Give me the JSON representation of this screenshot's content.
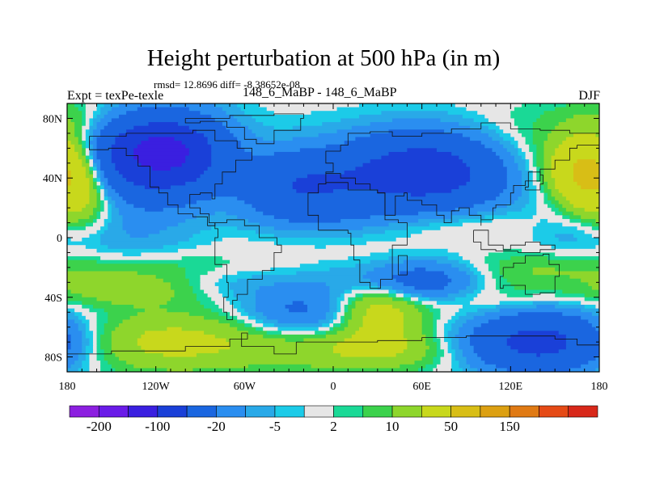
{
  "chart_data": {
    "type": "heatmap",
    "title": "Height perturbation at 500 hPa (in m)",
    "stats": "rmsd= 12.8696 diff= -8.38652e-08",
    "subtitle_left": "Expt = texPe-texle",
    "subtitle_center": "148_6_MaBP - 148_6_MaBP",
    "subtitle_right": "DJF",
    "x_range": [
      -180,
      180
    ],
    "y_range": [
      -90,
      90
    ],
    "x_ticks": [
      {
        "value": -180,
        "label": "180"
      },
      {
        "value": -120,
        "label": "120W"
      },
      {
        "value": -60,
        "label": "60W"
      },
      {
        "value": 0,
        "label": "0"
      },
      {
        "value": 60,
        "label": "60E"
      },
      {
        "value": 120,
        "label": "120E"
      },
      {
        "value": 180,
        "label": "180"
      }
    ],
    "y_ticks": [
      {
        "value": 80,
        "label": "80N"
      },
      {
        "value": 40,
        "label": "40N"
      },
      {
        "value": 0,
        "label": "0"
      },
      {
        "value": -40,
        "label": "40S"
      },
      {
        "value": -80,
        "label": "80S"
      }
    ],
    "colorbar": {
      "colors": [
        "#8c1fe0",
        "#6a1be8",
        "#3a1fe0",
        "#1a40d8",
        "#1a66e0",
        "#2a8ef0",
        "#29a9e8",
        "#1ccbe8",
        "#e6e6e6",
        "#1ad996",
        "#3cd24c",
        "#8ed62c",
        "#c8d81c",
        "#d8be16",
        "#dca012",
        "#e07a14",
        "#e54a16",
        "#d8281a"
      ],
      "labels": [
        {
          "index": 1,
          "label": "-200"
        },
        {
          "index": 3,
          "label": "-100"
        },
        {
          "index": 5,
          "label": "-20"
        },
        {
          "index": 7,
          "label": "-5"
        },
        {
          "index": 9,
          "label": "2"
        },
        {
          "index": 11,
          "label": "10"
        },
        {
          "index": 13,
          "label": "50"
        },
        {
          "index": 15,
          "label": "150"
        }
      ]
    },
    "field_blobs": [
      {
        "lon": -115,
        "lat": 55,
        "rx": 42,
        "ry": 20,
        "amp": -95
      },
      {
        "lon": -115,
        "lat": 58,
        "rx": 14,
        "ry": 9,
        "amp": -55
      },
      {
        "lon": -175,
        "lat": 40,
        "rx": 18,
        "ry": 25,
        "amp": 45
      },
      {
        "lon": -68,
        "lat": 50,
        "rx": 26,
        "ry": 22,
        "amp": 30
      },
      {
        "lon": -160,
        "lat": 80,
        "rx": 40,
        "ry": 10,
        "amp": 8
      },
      {
        "lon": -25,
        "lat": 35,
        "rx": 32,
        "ry": 15,
        "amp": -45
      },
      {
        "lon": 0,
        "lat": 15,
        "rx": 45,
        "ry": 10,
        "amp": -10
      },
      {
        "lon": 65,
        "lat": 45,
        "rx": 40,
        "ry": 18,
        "amp": -75
      },
      {
        "lon": 130,
        "lat": 55,
        "rx": 45,
        "ry": 18,
        "amp": 15
      },
      {
        "lon": 168,
        "lat": 45,
        "rx": 16,
        "ry": 15,
        "amp": 40
      },
      {
        "lon": 75,
        "lat": 10,
        "rx": 40,
        "ry": 8,
        "amp": 8
      },
      {
        "lon": -150,
        "lat": 0,
        "rx": 40,
        "ry": 15,
        "amp": -10
      },
      {
        "lon": -120,
        "lat": -20,
        "rx": 50,
        "ry": 8,
        "amp": 8
      },
      {
        "lon": -140,
        "lat": -35,
        "rx": 40,
        "ry": 8,
        "amp": 15
      },
      {
        "lon": -70,
        "lat": -30,
        "rx": 30,
        "ry": 8,
        "amp": -8
      },
      {
        "lon": -110,
        "lat": -70,
        "rx": 55,
        "ry": 14,
        "amp": 25
      },
      {
        "lon": 30,
        "lat": -45,
        "rx": 22,
        "ry": 16,
        "amp": 35
      },
      {
        "lon": 25,
        "lat": -75,
        "rx": 45,
        "ry": 10,
        "amp": 20
      },
      {
        "lon": 55,
        "lat": -30,
        "rx": 35,
        "ry": 10,
        "amp": -45
      },
      {
        "lon": -20,
        "lat": -50,
        "rx": 30,
        "ry": 12,
        "amp": -25
      },
      {
        "lon": 140,
        "lat": -70,
        "rx": 35,
        "ry": 14,
        "amp": -65
      },
      {
        "lon": 95,
        "lat": -35,
        "rx": 35,
        "ry": 12,
        "amp": 15
      },
      {
        "lon": 170,
        "lat": 5,
        "rx": 20,
        "ry": 12,
        "amp": -8
      },
      {
        "lon": 140,
        "lat": -20,
        "rx": 40,
        "ry": 8,
        "amp": 8
      }
    ]
  }
}
